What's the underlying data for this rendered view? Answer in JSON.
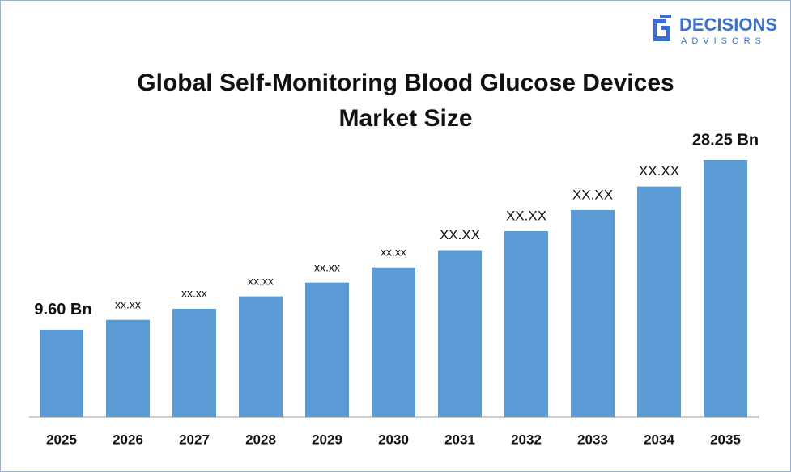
{
  "brand": {
    "name": "DECISIONS",
    "tagline": "ADVISORS"
  },
  "chart_data": {
    "type": "bar",
    "title": "Global Self-Monitoring Blood Glucose Devices Market Size",
    "categories": [
      "2025",
      "2026",
      "2027",
      "2028",
      "2029",
      "2030",
      "2031",
      "2032",
      "2033",
      "2034",
      "2035"
    ],
    "values": [
      9.6,
      10.69,
      11.91,
      13.27,
      14.78,
      16.46,
      18.34,
      20.43,
      22.75,
      25.35,
      28.25
    ],
    "value_labels": [
      "9.60 Bn",
      "xx.xx",
      "xx.xx",
      "xx.xx",
      "xx.xx",
      "xx.xx",
      "XX.XX",
      "XX.XX",
      "XX.XX",
      "XX.XX",
      "28.25 Bn"
    ],
    "color": "#5b9bd5"
  }
}
